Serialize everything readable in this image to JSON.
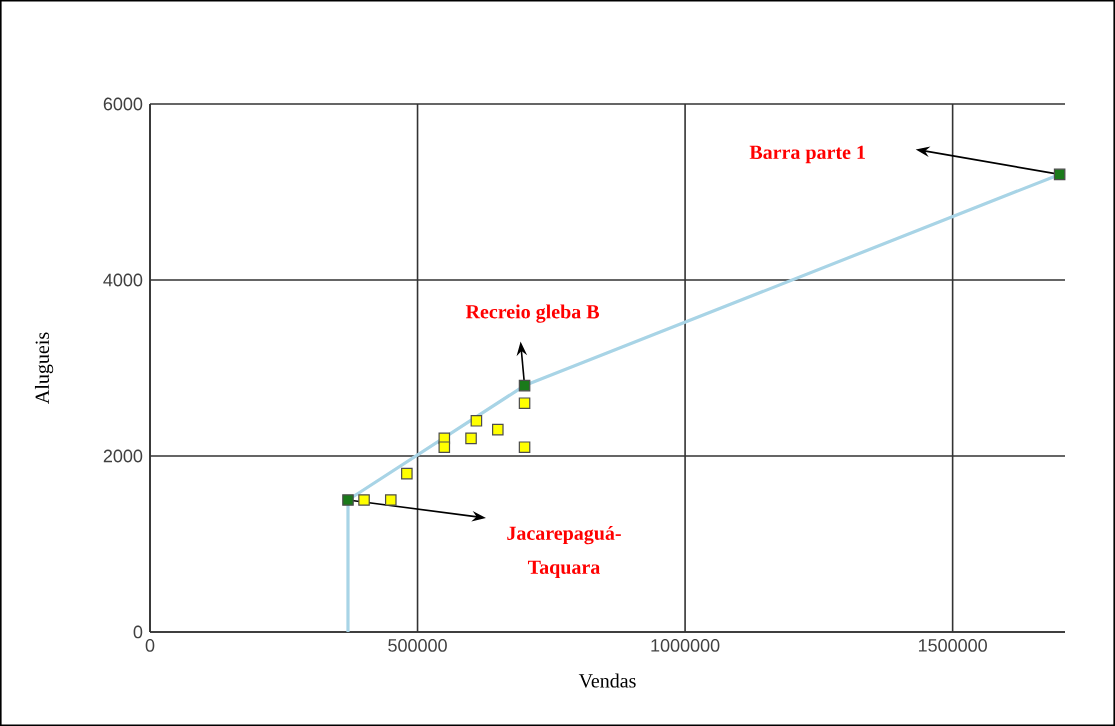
{
  "chart_data": {
    "type": "scatter",
    "xlabel": "Vendas",
    "ylabel": "Alugueis",
    "xlim": [
      0,
      1710000
    ],
    "ylim": [
      0,
      6000
    ],
    "xticks": [
      0,
      500000,
      1000000,
      1500000
    ],
    "yticks": [
      0,
      2000,
      4000,
      6000
    ],
    "grid": true,
    "series": [
      {
        "type": "line",
        "color": "#a8d4e6",
        "marker": "none",
        "line_style": "solid",
        "x": [
          370000,
          370000,
          700000,
          1700000
        ],
        "values": [
          0,
          1500,
          2800,
          5200
        ]
      },
      {
        "color": "#ffff00",
        "marker": "square",
        "x": [
          400000,
          450000,
          480000,
          550000,
          550000,
          600000,
          610000,
          650000,
          700000,
          700000
        ],
        "values": [
          1500,
          1500,
          1800,
          2200,
          2100,
          2200,
          2400,
          2300,
          2600,
          2100
        ]
      },
      {
        "color": "#1a7a1a",
        "marker": "square",
        "x": [
          370000,
          700000,
          1700000
        ],
        "values": [
          1500,
          2800,
          5200
        ]
      }
    ],
    "annotations": [
      "Barra  parte 1",
      "Recreio gleba B",
      "Jacarepaguá-Taquara"
    ]
  }
}
